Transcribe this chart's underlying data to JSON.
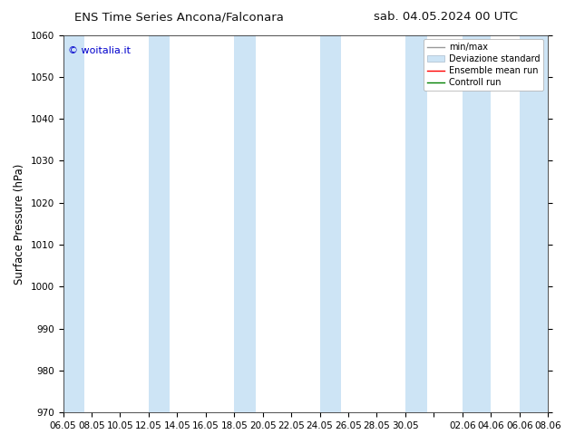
{
  "title_left": "ENS Time Series Ancona/Falconara",
  "title_right": "sab. 04.05.2024 00 UTC",
  "ylabel": "Surface Pressure (hPa)",
  "ylim": [
    970,
    1060
  ],
  "yticks": [
    970,
    980,
    990,
    1000,
    1010,
    1020,
    1030,
    1040,
    1050,
    1060
  ],
  "watermark": "© woitalia.it",
  "watermark_color": "#0000cc",
  "background_color": "#ffffff",
  "plot_bg_color": "#ffffff",
  "band_color": "#cde4f5",
  "xtick_labels": [
    "06.05",
    "08.05",
    "10.05",
    "12.05",
    "14.05",
    "16.05",
    "18.05",
    "20.05",
    "22.05",
    "24.05",
    "26.05",
    "28.05",
    "30.05",
    "",
    "02.06",
    "04.06",
    "06.06",
    "08.06"
  ],
  "xtick_positions": [
    0,
    2,
    4,
    6,
    8,
    10,
    12,
    14,
    16,
    18,
    20,
    22,
    24,
    26,
    28,
    30,
    32,
    34
  ],
  "n_steps": 34,
  "legend_labels": [
    "min/max",
    "Deviazione standard",
    "Ensemble mean run",
    "Controll run"
  ],
  "legend_line_colors": [
    "#aaaaaa",
    "#bbccdd",
    "#ff0000",
    "#008000"
  ],
  "band_positions": [
    0,
    6,
    12,
    18,
    20,
    24,
    28,
    32
  ],
  "band_widths": [
    1.5,
    1.5,
    1.5,
    0.8,
    0.8,
    1.5,
    1.5,
    1.5
  ],
  "title_fontsize": 9.5,
  "tick_fontsize": 7.5,
  "ylabel_fontsize": 8.5,
  "watermark_fontsize": 8,
  "legend_fontsize": 7
}
